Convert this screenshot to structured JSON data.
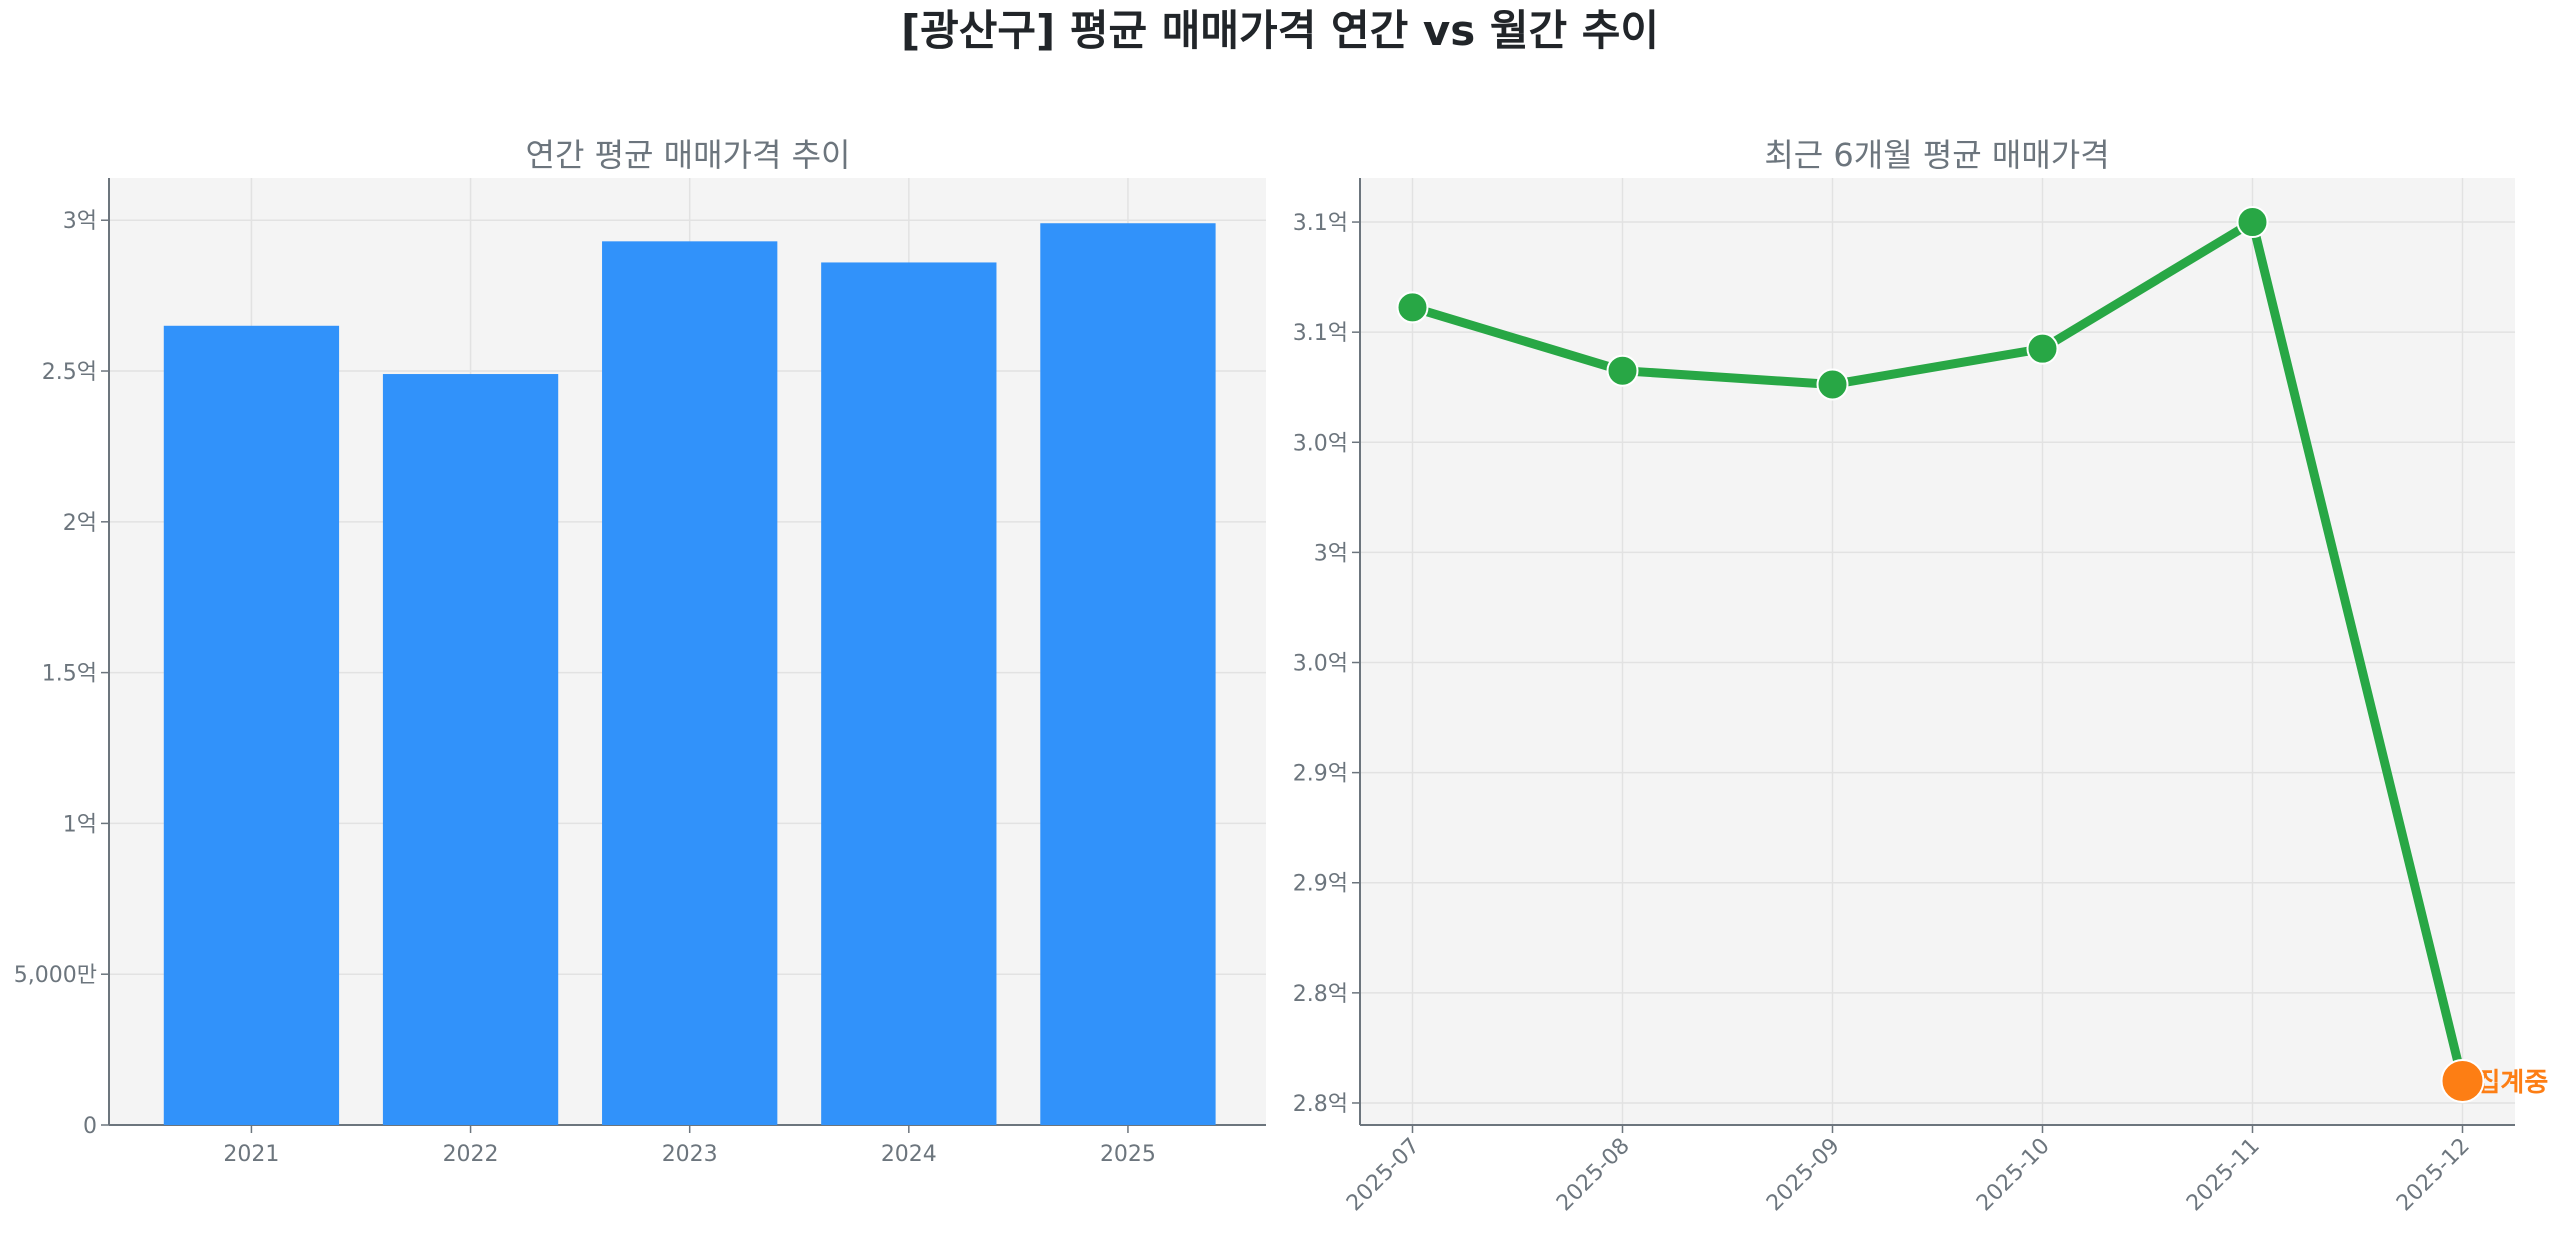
{
  "title": "[광산구] 평균 매매가격 연간 vs 월간 추이",
  "colors": {
    "bar": "#3192fa",
    "line": "#28a745",
    "marker": "#28a745",
    "pending": "#fd7e14",
    "axes_bg": "#f4f4f4",
    "text": "#6c757d"
  },
  "chart_data": [
    {
      "type": "bar",
      "title": "연간 평균 매매가격 추이",
      "categories": [
        "2021",
        "2022",
        "2023",
        "2024",
        "2025"
      ],
      "values": [
        2.65,
        2.49,
        2.93,
        2.86,
        2.99
      ],
      "unit": "억",
      "ylim": [
        0,
        3.14
      ],
      "yticks": [
        0,
        0.5,
        1,
        1.5,
        2,
        2.5,
        3
      ],
      "ytick_labels": [
        "0",
        "5,000만",
        "1억",
        "1.5억",
        "2억",
        "2.5억",
        "3억"
      ],
      "grid": true
    },
    {
      "type": "line",
      "title": "최근 6개월 평균 매매가격",
      "categories": [
        "2025-07",
        "2025-08",
        "2025-09",
        "2025-10",
        "2025-11",
        "2025-12"
      ],
      "values": [
        3.089,
        3.066,
        3.061,
        3.074,
        3.12,
        2.808
      ],
      "unit": "억",
      "ylim": [
        2.792,
        3.136
      ],
      "yticks": [
        2.8,
        2.84,
        2.88,
        2.92,
        2.96,
        3.0,
        3.04,
        3.08,
        3.12
      ],
      "ytick_labels": [
        "2.8억",
        "2.8억",
        "2.9억",
        "2.9억",
        "3.0억",
        "3억",
        "3.0억",
        "3.1억",
        "3.1억"
      ],
      "annotation": {
        "category": "2025-12",
        "text": "집계중"
      },
      "grid": true
    }
  ]
}
